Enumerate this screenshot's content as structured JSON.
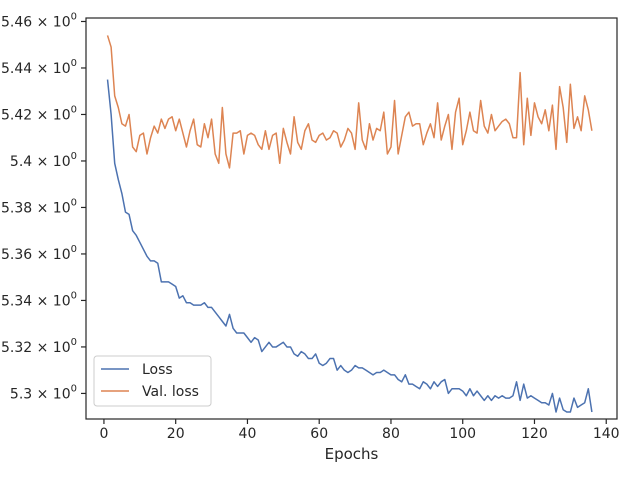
{
  "chart_data": {
    "type": "line",
    "xlabel": "Epochs",
    "ylabel": "",
    "xlim": [
      -5,
      143
    ],
    "ylim": [
      5.289,
      5.4615
    ],
    "x_ticks": [
      0,
      20,
      40,
      60,
      80,
      100,
      120,
      140
    ],
    "y_ticks": [
      {
        "value": 5.3,
        "base": "5.3",
        "exp": "0"
      },
      {
        "value": 5.32,
        "base": "5.32",
        "exp": "0"
      },
      {
        "value": 5.34,
        "base": "5.34",
        "exp": "0"
      },
      {
        "value": 5.36,
        "base": "5.36",
        "exp": "0"
      },
      {
        "value": 5.38,
        "base": "5.38",
        "exp": "0"
      },
      {
        "value": 5.4,
        "base": "5.4",
        "exp": "0"
      },
      {
        "value": 5.42,
        "base": "5.42",
        "exp": "0"
      },
      {
        "value": 5.44,
        "base": "5.44",
        "exp": "0"
      },
      {
        "value": 5.46,
        "base": "5.46",
        "exp": "0"
      }
    ],
    "legend_placement": "lower-left",
    "grid": false,
    "series": [
      {
        "name": "Loss",
        "color": "#4c72b0",
        "x": [
          1,
          2,
          3,
          4,
          5,
          6,
          7,
          8,
          9,
          10,
          11,
          12,
          13,
          14,
          15,
          16,
          17,
          18,
          19,
          20,
          21,
          22,
          23,
          24,
          25,
          26,
          27,
          28,
          29,
          30,
          31,
          32,
          33,
          34,
          35,
          36,
          37,
          38,
          39,
          40,
          41,
          42,
          43,
          44,
          45,
          46,
          47,
          48,
          49,
          50,
          51,
          52,
          53,
          54,
          55,
          56,
          57,
          58,
          59,
          60,
          61,
          62,
          63,
          64,
          65,
          66,
          67,
          68,
          69,
          70,
          71,
          72,
          73,
          74,
          75,
          76,
          77,
          78,
          79,
          80,
          81,
          82,
          83,
          84,
          85,
          86,
          87,
          88,
          89,
          90,
          91,
          92,
          93,
          94,
          95,
          96,
          97,
          98,
          99,
          100,
          101,
          102,
          103,
          104,
          105,
          106,
          107,
          108,
          109,
          110,
          111,
          112,
          113,
          114,
          115,
          116,
          117,
          118,
          119,
          120,
          121,
          122,
          123,
          124,
          125,
          126,
          127,
          128,
          129,
          130,
          131,
          132,
          133,
          134,
          135,
          136
        ],
        "y": [
          5.435,
          5.42,
          5.399,
          5.392,
          5.386,
          5.378,
          5.377,
          5.37,
          5.368,
          5.365,
          5.362,
          5.359,
          5.357,
          5.357,
          5.356,
          5.348,
          5.348,
          5.348,
          5.347,
          5.346,
          5.341,
          5.342,
          5.339,
          5.339,
          5.338,
          5.338,
          5.338,
          5.339,
          5.337,
          5.337,
          5.335,
          5.333,
          5.331,
          5.329,
          5.334,
          5.328,
          5.326,
          5.326,
          5.326,
          5.324,
          5.322,
          5.324,
          5.323,
          5.318,
          5.32,
          5.322,
          5.32,
          5.32,
          5.321,
          5.322,
          5.32,
          5.32,
          5.317,
          5.316,
          5.318,
          5.317,
          5.315,
          5.315,
          5.317,
          5.313,
          5.312,
          5.313,
          5.315,
          5.315,
          5.31,
          5.312,
          5.31,
          5.309,
          5.31,
          5.312,
          5.311,
          5.311,
          5.31,
          5.309,
          5.308,
          5.309,
          5.309,
          5.31,
          5.309,
          5.308,
          5.308,
          5.306,
          5.305,
          5.308,
          5.304,
          5.304,
          5.303,
          5.302,
          5.305,
          5.304,
          5.302,
          5.305,
          5.303,
          5.305,
          5.306,
          5.3,
          5.302,
          5.302,
          5.302,
          5.301,
          5.299,
          5.302,
          5.299,
          5.301,
          5.299,
          5.297,
          5.299,
          5.297,
          5.299,
          5.298,
          5.299,
          5.298,
          5.298,
          5.299,
          5.305,
          5.297,
          5.304,
          5.298,
          5.299,
          5.298,
          5.297,
          5.296,
          5.296,
          5.295,
          5.3,
          5.292,
          5.298,
          5.293,
          5.292,
          5.292,
          5.298,
          5.294,
          5.295,
          5.296,
          5.302,
          5.292
        ]
      },
      {
        "name": "Val. loss",
        "color": "#dd8452",
        "x": [
          1,
          2,
          3,
          4,
          5,
          6,
          7,
          8,
          9,
          10,
          11,
          12,
          13,
          14,
          15,
          16,
          17,
          18,
          19,
          20,
          21,
          22,
          23,
          24,
          25,
          26,
          27,
          28,
          29,
          30,
          31,
          32,
          33,
          34,
          35,
          36,
          37,
          38,
          39,
          40,
          41,
          42,
          43,
          44,
          45,
          46,
          47,
          48,
          49,
          50,
          51,
          52,
          53,
          54,
          55,
          56,
          57,
          58,
          59,
          60,
          61,
          62,
          63,
          64,
          65,
          66,
          67,
          68,
          69,
          70,
          71,
          72,
          73,
          74,
          75,
          76,
          77,
          78,
          79,
          80,
          81,
          82,
          83,
          84,
          85,
          86,
          87,
          88,
          89,
          90,
          91,
          92,
          93,
          94,
          95,
          96,
          97,
          98,
          99,
          100,
          101,
          102,
          103,
          104,
          105,
          106,
          107,
          108,
          109,
          110,
          111,
          112,
          113,
          114,
          115,
          116,
          117,
          118,
          119,
          120,
          121,
          122,
          123,
          124,
          125,
          126,
          127,
          128,
          129,
          130,
          131,
          132,
          133,
          134,
          135,
          136
        ],
        "y": [
          5.454,
          5.449,
          5.428,
          5.423,
          5.416,
          5.415,
          5.42,
          5.406,
          5.404,
          5.411,
          5.412,
          5.403,
          5.41,
          5.415,
          5.412,
          5.418,
          5.414,
          5.418,
          5.419,
          5.413,
          5.418,
          5.412,
          5.406,
          5.413,
          5.418,
          5.407,
          5.406,
          5.416,
          5.41,
          5.418,
          5.403,
          5.399,
          5.423,
          5.403,
          5.397,
          5.412,
          5.412,
          5.413,
          5.403,
          5.411,
          5.412,
          5.411,
          5.407,
          5.405,
          5.413,
          5.405,
          5.411,
          5.412,
          5.399,
          5.414,
          5.408,
          5.403,
          5.419,
          5.408,
          5.405,
          5.413,
          5.416,
          5.409,
          5.408,
          5.411,
          5.412,
          5.409,
          5.41,
          5.413,
          5.412,
          5.406,
          5.409,
          5.414,
          5.412,
          5.405,
          5.425,
          5.409,
          5.405,
          5.416,
          5.409,
          5.414,
          5.413,
          5.421,
          5.403,
          5.406,
          5.426,
          5.403,
          5.411,
          5.419,
          5.421,
          5.415,
          5.416,
          5.416,
          5.407,
          5.412,
          5.416,
          5.41,
          5.425,
          5.409,
          5.415,
          5.42,
          5.405,
          5.421,
          5.427,
          5.407,
          5.413,
          5.421,
          5.413,
          5.412,
          5.426,
          5.415,
          5.412,
          5.42,
          5.413,
          5.415,
          5.417,
          5.418,
          5.416,
          5.41,
          5.41,
          5.438,
          5.407,
          5.427,
          5.411,
          5.425,
          5.419,
          5.416,
          5.422,
          5.413,
          5.424,
          5.405,
          5.432,
          5.423,
          5.408,
          5.433,
          5.414,
          5.419,
          5.413,
          5.428,
          5.422,
          5.413
        ]
      }
    ]
  }
}
